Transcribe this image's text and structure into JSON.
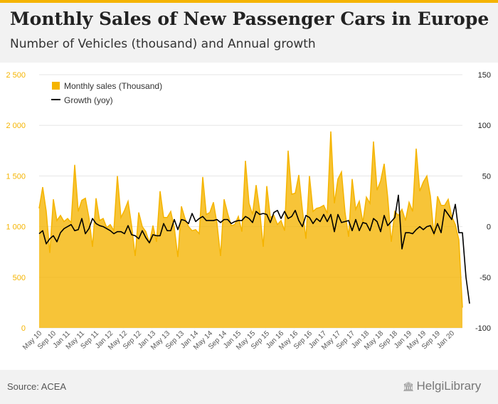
{
  "header": {
    "title": "Monthly Sales of New Passenger Cars in Europe",
    "subtitle": "Number of Vehicles (thousand) and Annual growth"
  },
  "footer": {
    "source": "Source: ACEA",
    "logo": "HelgiLibrary"
  },
  "colors": {
    "area": "#f5b400",
    "line": "#000000",
    "accent": "#f5b400"
  },
  "chart_data": {
    "type": "area",
    "start_month": "May 10",
    "x_tick_labels": [
      "May 10",
      "Sep 10",
      "Jan 11",
      "May 11",
      "Sep 11",
      "Jan 12",
      "May 12",
      "Sep 12",
      "Jan 13",
      "May 13",
      "Sep 13",
      "Jan 14",
      "May 14",
      "Sep 14",
      "Jan 15",
      "May 15",
      "Sep 15",
      "Jan 16",
      "May 16",
      "Sep 16",
      "Jan 17",
      "May 17",
      "Sep 17",
      "Jan 18",
      "May 18",
      "Sep 18",
      "Jan 19",
      "May 19",
      "Sep 19",
      "Jan 20"
    ],
    "y_left": {
      "ticks": [
        0,
        500,
        1000,
        1500,
        2000,
        2500
      ],
      "tick_labels": [
        "0",
        "500",
        "1 000",
        "1 500",
        "2 000",
        "2 500"
      ],
      "lim": [
        0,
        2500
      ]
    },
    "y_right": {
      "ticks": [
        -100,
        -50,
        0,
        50,
        100,
        150
      ],
      "tick_labels": [
        "-100",
        "-50",
        "0",
        "50",
        "100",
        "150"
      ],
      "lim": [
        -100,
        150
      ]
    },
    "legend": {
      "position": "top-left"
    },
    "series": [
      {
        "name": "Monthly sales (Thousand)",
        "type": "area",
        "axis": "left",
        "values": [
          1180,
          1390,
          1150,
          740,
          1270,
          1060,
          1110,
          1050,
          1080,
          1040,
          1610,
          1150,
          1260,
          1280,
          1090,
          800,
          1280,
          1060,
          1080,
          990,
          1020,
          960,
          1500,
          1090,
          1160,
          1250,
          1010,
          710,
          1140,
          1000,
          950,
          840,
          1010,
          850,
          1350,
          1090,
          1090,
          1150,
          990,
          700,
          1200,
          1080,
          1000,
          960,
          970,
          930,
          1490,
          1120,
          1140,
          1240,
          1030,
          710,
          1270,
          1130,
          1010,
          1020,
          1100,
          950,
          1650,
          1230,
          1120,
          1410,
          1160,
          800,
          1400,
          1090,
          1110,
          1020,
          1060,
          960,
          1750,
          1320,
          1330,
          1510,
          1170,
          880,
          1500,
          1150,
          1180,
          1190,
          1210,
          1130,
          1940,
          1230,
          1470,
          1540,
          1140,
          900,
          1470,
          1170,
          1250,
          1040,
          1290,
          1230,
          1840,
          1360,
          1450,
          1620,
          1290,
          850,
          1150,
          1110,
          1170,
          1060,
          1240,
          1150,
          1770,
          1350,
          1440,
          1500,
          1300,
          910,
          1300,
          1210,
          1210,
          1270,
          1100,
          1020,
          870,
          200
        ]
      },
      {
        "name": "Growth (yoy)",
        "type": "line",
        "axis": "right",
        "values": [
          -7,
          -4,
          -17,
          -12,
          -9,
          -15,
          -6,
          -2,
          0,
          2,
          -4,
          -3,
          8,
          -7,
          -2,
          8,
          3,
          1,
          0,
          -2,
          -4,
          -7,
          -5,
          -5,
          -7,
          1,
          -8,
          -9,
          -12,
          -4,
          -11,
          -16,
          -8,
          -9,
          -9,
          3,
          -4,
          -4,
          7,
          -3,
          7,
          6,
          3,
          13,
          5,
          8,
          10,
          6,
          6,
          6,
          7,
          4,
          7,
          7,
          3,
          5,
          6,
          6,
          10,
          8,
          4,
          15,
          12,
          13,
          12,
          4,
          14,
          16,
          8,
          15,
          8,
          10,
          16,
          6,
          0,
          11,
          9,
          3,
          8,
          5,
          12,
          5,
          12,
          -5,
          12,
          4,
          5,
          6,
          -4,
          7,
          -4,
          4,
          3,
          -4,
          8,
          5,
          -5,
          11,
          1,
          5,
          9,
          31,
          -22,
          -6,
          -6,
          -7,
          -3,
          0,
          -3,
          0,
          1,
          -7,
          3,
          -6,
          17,
          12,
          7,
          22,
          -6,
          -6,
          -50,
          -76
        ]
      }
    ]
  }
}
